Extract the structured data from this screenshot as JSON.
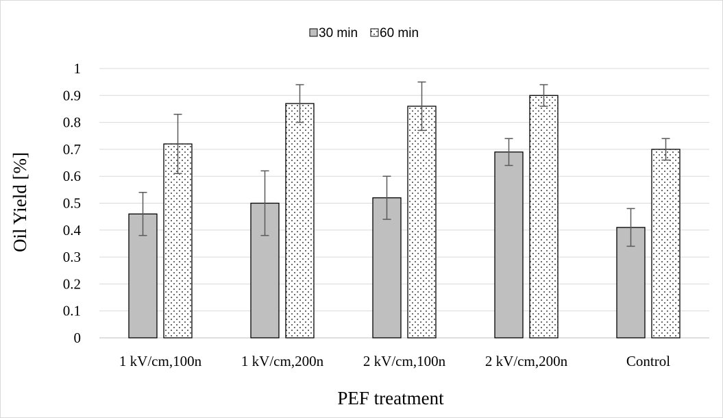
{
  "chart_data": {
    "type": "bar",
    "categories": [
      "1 kV/cm,100n",
      "1 kV/cm,200n",
      "2 kV/cm,100n",
      "2 kV/cm,200n",
      "Control"
    ],
    "series": [
      {
        "name": "30 min",
        "values": [
          0.46,
          0.5,
          0.52,
          0.69,
          0.41
        ],
        "error_low": [
          0.38,
          0.38,
          0.44,
          0.64,
          0.34
        ],
        "error_high": [
          0.54,
          0.62,
          0.6,
          0.74,
          0.48
        ],
        "color": "#bfbfbf",
        "pattern": "solid"
      },
      {
        "name": "60 min",
        "values": [
          0.72,
          0.87,
          0.86,
          0.9,
          0.7
        ],
        "error_low": [
          0.61,
          0.8,
          0.77,
          0.86,
          0.66
        ],
        "error_high": [
          0.83,
          0.94,
          0.95,
          0.94,
          0.74
        ],
        "color": "#ffffff",
        "pattern": "dotted"
      }
    ],
    "xlabel": "PEF treatment",
    "ylabel": "Oil Yield [%]",
    "ylim": [
      0,
      1
    ],
    "yticks": [
      "0",
      "0.1",
      "0.2",
      "0.3",
      "0.4",
      "0.5",
      "0.6",
      "0.7",
      "0.8",
      "0.9",
      "1"
    ],
    "grid": true,
    "legend_position": "top"
  }
}
